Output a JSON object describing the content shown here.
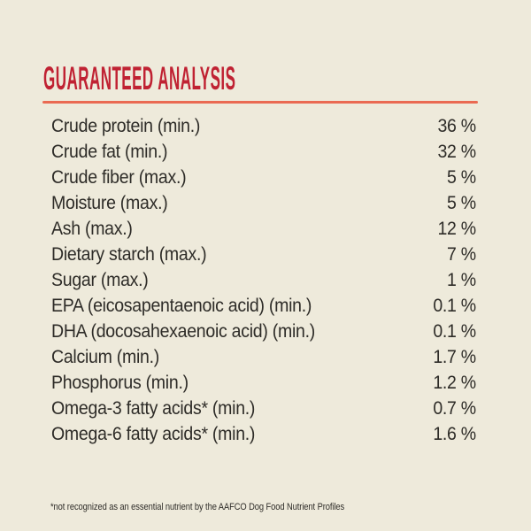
{
  "palette": {
    "background": "#eeeadb",
    "heading_red": "#c02233",
    "underline_salmon": "#ea6a52",
    "body_text": "#2e2c28"
  },
  "header": {
    "title": "GUARANTEED ANALYSIS"
  },
  "analysis": {
    "rows": [
      {
        "label": "Crude protein (min.)",
        "value": "36 %"
      },
      {
        "label": "Crude fat (min.)",
        "value": "32 %"
      },
      {
        "label": "Crude fiber (max.)",
        "value": "5 %"
      },
      {
        "label": "Moisture (max.)",
        "value": "5 %"
      },
      {
        "label": "Ash (max.)",
        "value": "12 %"
      },
      {
        "label": "Dietary starch (max.)",
        "value": "7 %"
      },
      {
        "label": "Sugar (max.)",
        "value": "1 %"
      },
      {
        "label": "EPA (eicosapentaenoic acid) (min.)",
        "value": "0.1 %"
      },
      {
        "label": "DHA (docosahexaenoic acid) (min.)",
        "value": "0.1 %"
      },
      {
        "label": "Calcium (min.)",
        "value": "1.7 %"
      },
      {
        "label": "Phosphorus (min.)",
        "value": "1.2 %"
      },
      {
        "label": "Omega-3 fatty acids* (min.)",
        "value": "0.7 %"
      },
      {
        "label": "Omega-6 fatty acids* (min.)",
        "value": "1.6 %"
      }
    ]
  },
  "footnote": {
    "text": "*not recognized as an essential nutrient by the AAFCO Dog Food Nutrient Profiles"
  }
}
